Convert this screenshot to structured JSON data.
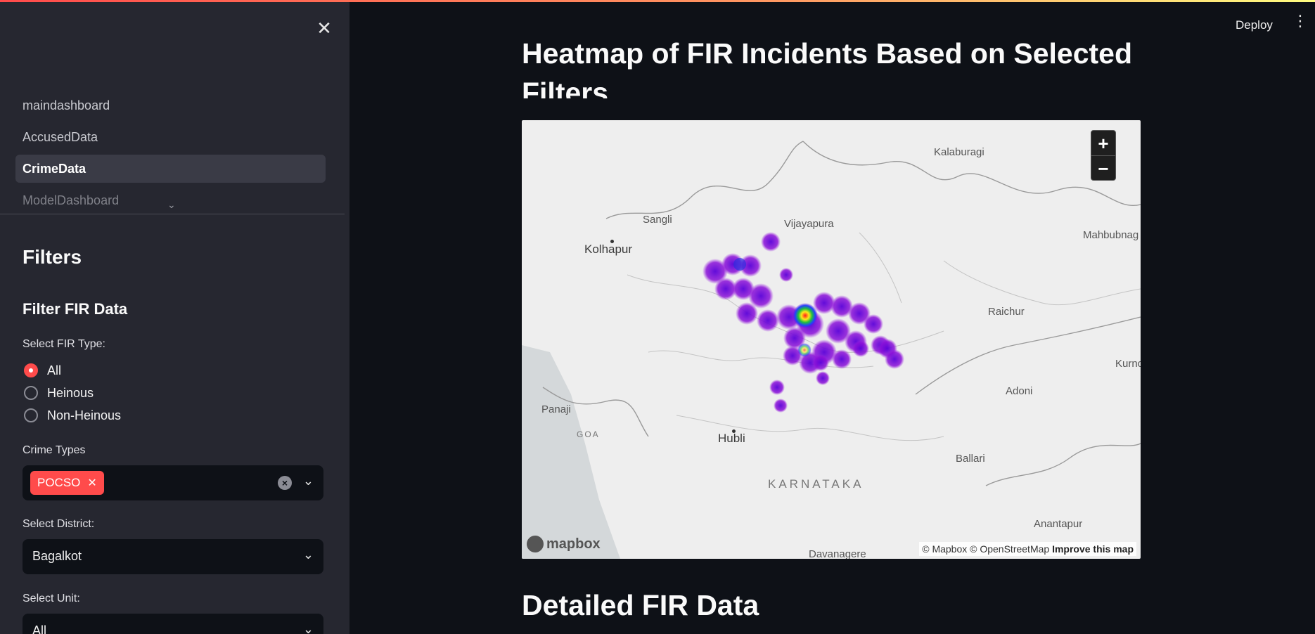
{
  "sidebar": {
    "nav_items": [
      "maindashboard",
      "AccusedData",
      "CrimeData",
      "ModelDashboard"
    ],
    "active_item": "CrimeData",
    "filters_title": "Filters",
    "filter_subtitle": "Filter FIR Data",
    "fir_type": {
      "label": "Select FIR Type:",
      "options": [
        "All",
        "Heinous",
        "Non-Heinous"
      ],
      "selected": "All"
    },
    "crime_types": {
      "label": "Crime Types",
      "tags": [
        "POCSO"
      ]
    },
    "district": {
      "label": "Select District:",
      "value": "Bagalkot"
    },
    "unit": {
      "label": "Select Unit:",
      "value": "All"
    }
  },
  "header": {
    "deploy_label": "Deploy"
  },
  "main": {
    "heading": "Heatmap of FIR Incidents Based on Selected Filters",
    "section_title": "Detailed FIR Data",
    "map": {
      "cities": [
        "Kalaburagi",
        "Sangli",
        "Vijayapura",
        "Kolhapur",
        "Mahbubnag",
        "Raichur",
        "Kurnoo",
        "Adoni",
        "Panaji",
        "GOA",
        "Hubli",
        "Ballari",
        "KARNATAKA",
        "Anantapur",
        "Davanagere"
      ],
      "zoom_in": "+",
      "zoom_out": "−",
      "logo": "mapbox",
      "attribution": "© Mapbox © OpenStreetMap",
      "improve_link": "Improve this map"
    }
  },
  "colors": {
    "accent": "#ff4b4b",
    "background": "#0e1117",
    "sidebar": "#262730"
  }
}
